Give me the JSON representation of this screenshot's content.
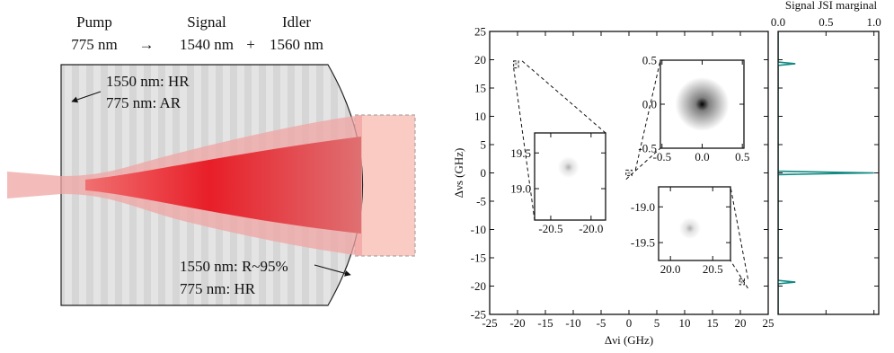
{
  "diagram": {
    "process": [
      {
        "label": "Pump",
        "wavelength": "775 nm"
      },
      {
        "label": "Signal",
        "wavelength": "1540 nm"
      },
      {
        "label": "Idler",
        "wavelength": "1560 nm"
      }
    ],
    "operators": [
      "→",
      "+"
    ],
    "mirror_left": [
      "1550 nm: HR",
      "775 nm: AR"
    ],
    "mirror_right": [
      "1550 nm: R~95%",
      "775 nm: HR"
    ]
  },
  "chart_data": [
    {
      "type": "heatmap",
      "xlabel": "Δνi (GHz)",
      "ylabel": "Δνs (GHz)",
      "x": [
        -20.28,
        0,
        20.23
      ],
      "y": [
        19.3,
        0,
        -19.3
      ],
      "color": "#555555",
      "xlim": [
        -25,
        25
      ],
      "ylim": [
        -25,
        25
      ],
      "xticks": [
        -25,
        -20,
        -15,
        -10,
        -5,
        0,
        5,
        10,
        15,
        20,
        25
      ],
      "yticks": [
        -25,
        -20,
        -15,
        -10,
        -5,
        0,
        5,
        10,
        15,
        20,
        25
      ]
    },
    {
      "type": "line",
      "xlabel": "Signal JSI marginal",
      "series": [
        {
          "color": "#138a83",
          "positions": [
            -25,
            -19.6,
            -19.3,
            -19.0,
            -0.3,
            0,
            0.3,
            19.0,
            19.3,
            19.6,
            25
          ],
          "values": [
            0,
            0,
            0.18,
            0,
            0,
            1.0,
            0,
            0,
            0.18,
            0,
            0
          ]
        }
      ],
      "xlim": [
        0,
        1.05
      ],
      "xticks": [
        {
          "value": 0,
          "label": "0.0"
        },
        0.5,
        {
          "value": 1,
          "label": "1.0"
        }
      ],
      "ylim": [
        -25,
        25
      ],
      "yticks": [
        -25,
        -20,
        -15,
        -10,
        -5,
        0,
        5,
        10,
        15,
        20,
        25
      ]
    },
    {
      "type": "heatmap",
      "x": [
        -20.28
      ],
      "y": [
        19.3
      ],
      "color": "#b0b0b0",
      "xlim": [
        -20.7,
        -19.82
      ],
      "ylim": [
        18.56,
        19.78
      ],
      "xticks": [
        -20.5,
        {
          "value": -20,
          "label": "-20.0"
        }
      ],
      "yticks": [
        {
          "value": 19,
          "label": "19.0"
        },
        19.5
      ]
    },
    {
      "type": "heatmap",
      "x": [
        0
      ],
      "y": [
        0
      ],
      "color": "#000000",
      "xlim": [
        -0.52,
        0.52
      ],
      "ylim": [
        -0.5,
        0.5
      ],
      "xticks": [
        -0.5,
        {
          "value": 0,
          "label": "0.0"
        },
        0.5
      ],
      "yticks": [
        -0.5,
        {
          "value": 0,
          "label": "0.0"
        },
        0.5
      ]
    },
    {
      "type": "heatmap",
      "x": [
        20.23
      ],
      "y": [
        -19.3
      ],
      "color": "#b0b0b0",
      "xlim": [
        19.86,
        20.71
      ],
      "ylim": [
        -19.75,
        -18.72
      ],
      "xticks": [
        {
          "value": 20,
          "label": "20.0"
        },
        20.5
      ],
      "yticks": [
        -19.5,
        {
          "value": -19,
          "label": "-19.0"
        }
      ]
    }
  ]
}
